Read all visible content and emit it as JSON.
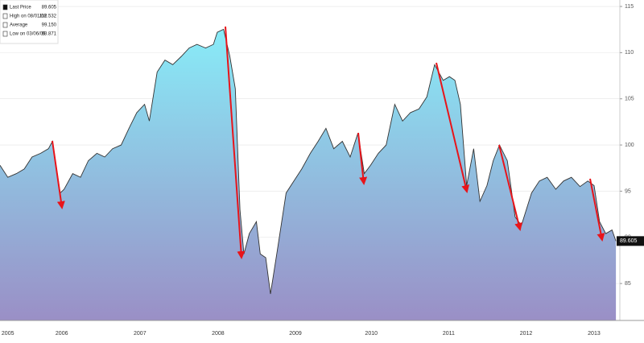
{
  "chart_data": {
    "type": "area",
    "legend": [
      {
        "label": "Last Price",
        "value": "89.605"
      },
      {
        "label": "High on 08/01/08",
        "value": "112.532"
      },
      {
        "label": "Average",
        "value": "99.150"
      },
      {
        "label": "Low on 03/06/09",
        "value": "83.871"
      }
    ],
    "x": [
      2005.69,
      2005.79,
      2005.9,
      2006.0,
      2006.1,
      2006.21,
      2006.31,
      2006.36,
      2006.46,
      2006.51,
      2006.62,
      2006.72,
      2006.82,
      2006.93,
      2007.03,
      2007.13,
      2007.24,
      2007.34,
      2007.44,
      2007.54,
      2007.6,
      2007.7,
      2007.8,
      2007.9,
      2008.01,
      2008.11,
      2008.21,
      2008.32,
      2008.42,
      2008.47,
      2008.55,
      2008.63,
      2008.7,
      2008.76,
      2008.81,
      2008.88,
      2008.97,
      2009.02,
      2009.09,
      2009.15,
      2009.24,
      2009.35,
      2009.45,
      2009.55,
      2009.66,
      2009.76,
      2009.86,
      2009.96,
      2010.07,
      2010.17,
      2010.27,
      2010.35,
      2010.43,
      2010.53,
      2010.63,
      2010.74,
      2010.84,
      2010.94,
      2011.05,
      2011.15,
      2011.25,
      2011.36,
      2011.44,
      2011.51,
      2011.58,
      2011.66,
      2011.75,
      2011.83,
      2011.92,
      2012.0,
      2012.08,
      2012.18,
      2012.28,
      2012.36,
      2012.49,
      2012.59,
      2012.69,
      2012.8,
      2012.9,
      2013.0,
      2013.11,
      2013.21,
      2013.29,
      2013.36,
      2013.44,
      2013.52,
      2013.57
    ],
    "values": [
      97.8,
      96.5,
      96.9,
      97.4,
      98.7,
      99.1,
      99.6,
      100.4,
      94.8,
      95.2,
      96.9,
      96.5,
      98.3,
      99.1,
      98.7,
      99.6,
      100.0,
      101.8,
      103.5,
      104.4,
      102.6,
      107.9,
      109.2,
      108.7,
      109.6,
      110.5,
      110.9,
      110.5,
      110.9,
      112.2,
      112.53,
      109.6,
      106.1,
      93.0,
      88.2,
      90.4,
      91.7,
      88.2,
      87.8,
      83.87,
      88.7,
      94.8,
      96.1,
      97.4,
      99.1,
      100.4,
      101.8,
      99.6,
      100.4,
      98.7,
      101.3,
      96.9,
      97.8,
      99.1,
      100.0,
      104.4,
      102.6,
      103.5,
      103.9,
      105.2,
      108.7,
      107.0,
      107.4,
      107.0,
      104.4,
      95.6,
      99.6,
      93.9,
      95.6,
      98.3,
      100.0,
      98.3,
      92.2,
      91.3,
      94.8,
      96.1,
      96.5,
      95.2,
      96.1,
      96.5,
      95.5,
      96.1,
      95.6,
      91.7,
      90.4,
      90.8,
      89.6
    ],
    "color": "#333333",
    "fill_gradient": [
      "#88ecf8",
      "#9a8fc6"
    ],
    "xlim": [
      2005.69,
      2013.62
    ],
    "xticks": [
      {
        "value": 2005.79,
        "label": "2005"
      },
      {
        "value": 2006.48,
        "label": "2006"
      },
      {
        "value": 2007.48,
        "label": "2007"
      },
      {
        "value": 2008.48,
        "label": "2008"
      },
      {
        "value": 2009.47,
        "label": "2009"
      },
      {
        "value": 2010.44,
        "label": "2010"
      },
      {
        "value": 2011.43,
        "label": "2011"
      },
      {
        "value": 2012.42,
        "label": "2012"
      },
      {
        "value": 2013.29,
        "label": "2013"
      }
    ],
    "ylim": [
      81,
      115.7
    ],
    "yticks": [
      85,
      90,
      95,
      100,
      105,
      110,
      115
    ],
    "grid": true
  }
}
